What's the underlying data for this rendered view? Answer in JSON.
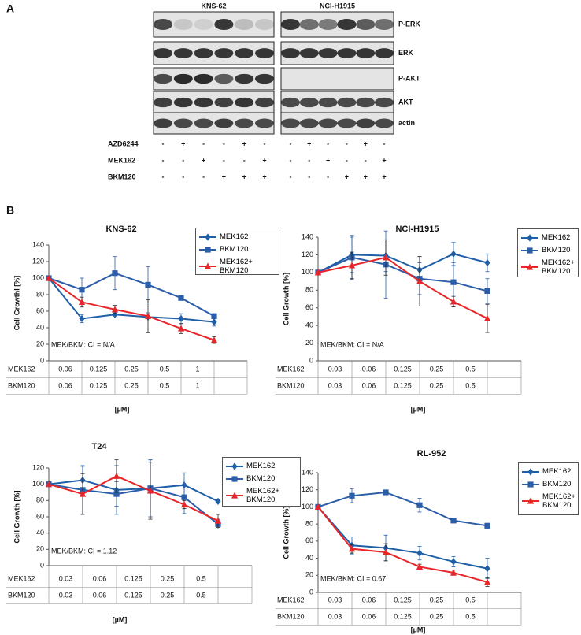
{
  "panel_a": {
    "label": "A",
    "cell_lines": [
      "KNS-62",
      "NCI-H1915"
    ],
    "blots": [
      "P-ERK",
      "ERK",
      "P-AKT",
      "AKT",
      "actin"
    ],
    "treatments": [
      {
        "name": "AZD6244",
        "signs": [
          "-",
          "+",
          "-",
          "-",
          "+",
          "-",
          "-",
          "+",
          "-",
          "-",
          "+",
          "-"
        ]
      },
      {
        "name": "MEK162",
        "signs": [
          "-",
          "-",
          "+",
          "-",
          "-",
          "+",
          "-",
          "-",
          "+",
          "-",
          "-",
          "+"
        ]
      },
      {
        "name": "BKM120",
        "signs": [
          "-",
          "-",
          "-",
          "+",
          "+",
          "+",
          "-",
          "-",
          "-",
          "+",
          "+",
          "+"
        ]
      }
    ]
  },
  "panel_b_label": "B",
  "chart_data": [
    {
      "type": "line",
      "title": "KNS-62",
      "ylabel": "Cell Growthl [%]",
      "xlabel": "[µM]",
      "annotation": "MEK/BKM: CI = N/A",
      "ylim": [
        0,
        140
      ],
      "yticks": [
        0,
        20,
        40,
        60,
        80,
        100,
        120,
        140
      ],
      "dose_table": [
        {
          "name": "MEK162",
          "values": [
            "0.06",
            "0.125",
            "0.25",
            "0.5",
            "1"
          ]
        },
        {
          "name": "BKM120",
          "values": [
            "0.06",
            "0.125",
            "0.25",
            "0.5",
            "1"
          ]
        }
      ],
      "series": [
        {
          "name": "MEK162",
          "color": "#1f5fa8",
          "marker": "diamond",
          "values": [
            100,
            51,
            56,
            53,
            51,
            47
          ],
          "errors": [
            0,
            5,
            4,
            5,
            6,
            5
          ]
        },
        {
          "name": "BKM120",
          "color": "#2b5da8",
          "marker": "square",
          "values": [
            100,
            86,
            106,
            92,
            76,
            54
          ],
          "errors": [
            0,
            14,
            20,
            22,
            2,
            3
          ]
        },
        {
          "name": "MEK162+ BKM120",
          "color": "#e8262a",
          "marker": "triangle",
          "values": [
            100,
            71,
            62,
            54,
            39,
            25
          ],
          "errors": [
            0,
            6,
            5,
            20,
            6,
            4
          ]
        }
      ]
    },
    {
      "type": "line",
      "title": "NCI-H1915",
      "ylabel": "Cell Growth [%]",
      "xlabel": "[µM]",
      "annotation": "MEK/BKM: CI = N/A",
      "ylim": [
        0,
        140
      ],
      "yticks": [
        0,
        20,
        40,
        60,
        80,
        100,
        120,
        140
      ],
      "dose_table": [
        {
          "name": "MEK162",
          "values": [
            "0.03",
            "0.06",
            "0.125",
            "0.25",
            "0.5"
          ]
        },
        {
          "name": "BKM120",
          "values": [
            "0.03",
            "0.06",
            "0.125",
            "0.25",
            "0.5"
          ]
        }
      ],
      "series": [
        {
          "name": "MEK162",
          "color": "#1f5fa8",
          "marker": "diamond",
          "values": [
            100,
            120,
            119,
            103,
            121,
            111
          ],
          "errors": [
            0,
            20,
            18,
            15,
            13,
            10
          ]
        },
        {
          "name": "BKM120",
          "color": "#2b5da8",
          "marker": "square",
          "values": [
            100,
            117,
            109,
            93,
            89,
            79
          ],
          "errors": [
            0,
            25,
            38,
            18,
            22,
            14
          ]
        },
        {
          "name": "MEK162+ BKM120",
          "color": "#e8262a",
          "marker": "triangle",
          "values": [
            100,
            108,
            117,
            90,
            67,
            48
          ],
          "errors": [
            0,
            15,
            20,
            28,
            6,
            16
          ]
        }
      ]
    },
    {
      "type": "line",
      "title": "T24",
      "ylabel": "Cell Growth [%]",
      "xlabel": "[µM]",
      "annotation": "MEK/BKM: CI = 1.12",
      "ylim": [
        0,
        120
      ],
      "yticks": [
        0,
        20,
        40,
        60,
        80,
        100,
        120
      ],
      "dose_table": [
        {
          "name": "MEK162",
          "values": [
            "0.03",
            "0.06",
            "0.125",
            "0.25",
            "0.5"
          ]
        },
        {
          "name": "BKM120",
          "values": [
            "0.03",
            "0.06",
            "0.125",
            "0.25",
            "0.5"
          ]
        }
      ],
      "series": [
        {
          "name": "MEK162",
          "color": "#1f5fa8",
          "marker": "diamond",
          "values": [
            100,
            105,
            93,
            95,
            99,
            79
          ],
          "errors": [
            0,
            17,
            30,
            35,
            15,
            0
          ]
        },
        {
          "name": "BKM120",
          "color": "#2b5da8",
          "marker": "square",
          "values": [
            100,
            93,
            88,
            95,
            84,
            51
          ],
          "errors": [
            0,
            30,
            15,
            35,
            20,
            6
          ]
        },
        {
          "name": "MEK162+ BKM120",
          "color": "#e8262a",
          "marker": "triangle",
          "values": [
            100,
            88,
            110,
            92,
            75,
            55
          ],
          "errors": [
            0,
            25,
            20,
            35,
            5,
            8
          ]
        }
      ]
    },
    {
      "type": "line",
      "title": "RL-952",
      "ylabel": "Cell Growth [%]",
      "xlabel": "[µM]",
      "annotation": "MEK/BKM: CI = 0.67",
      "ylim": [
        0,
        140
      ],
      "yticks": [
        0,
        20,
        40,
        60,
        80,
        100,
        120,
        140
      ],
      "dose_table": [
        {
          "name": "MEK162",
          "values": [
            "0.03",
            "0.06",
            "0.125",
            "0.25",
            "0.5"
          ]
        },
        {
          "name": "BKM120",
          "values": [
            "0.03",
            "0.06",
            "0.125",
            "0.25",
            "0.5"
          ]
        }
      ],
      "series": [
        {
          "name": "MEK162",
          "color": "#1f5fa8",
          "marker": "diamond",
          "values": [
            100,
            55,
            52,
            46,
            36,
            28
          ],
          "errors": [
            0,
            10,
            15,
            8,
            6,
            12
          ]
        },
        {
          "name": "BKM120",
          "color": "#2b5da8",
          "marker": "square",
          "values": [
            100,
            113,
            117,
            102,
            84,
            78
          ],
          "errors": [
            0,
            8,
            2,
            8,
            2,
            2
          ]
        },
        {
          "name": "MEK162+ BKM120",
          "color": "#e8262a",
          "marker": "triangle",
          "values": [
            100,
            51,
            47,
            30,
            23,
            12
          ],
          "errors": [
            0,
            5,
            10,
            3,
            3,
            5
          ]
        }
      ]
    }
  ]
}
